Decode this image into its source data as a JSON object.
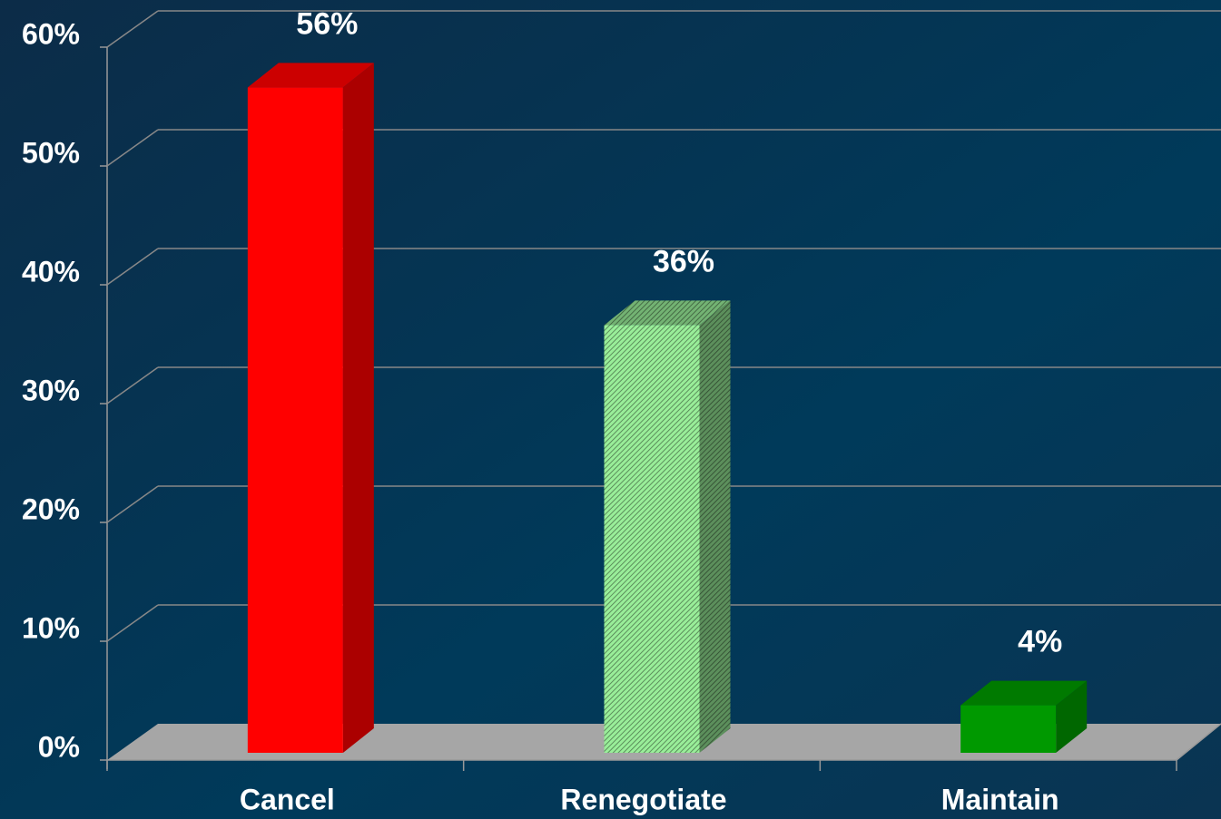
{
  "chart_data": {
    "type": "bar3d",
    "categories": [
      "Cancel",
      "Renegotiate",
      "Maintain"
    ],
    "values": [
      56,
      36,
      4
    ],
    "value_labels": [
      "56%",
      "36%",
      "4%"
    ],
    "colors": [
      "#ff0000",
      "#99ee99",
      "#009900"
    ],
    "hatch": [
      false,
      true,
      false
    ],
    "ylim": [
      0,
      60
    ],
    "yticks": [
      {
        "value": 0,
        "label": "0%"
      },
      {
        "value": 10,
        "label": "10%"
      },
      {
        "value": 20,
        "label": "20%"
      },
      {
        "value": 30,
        "label": "30%"
      },
      {
        "value": 40,
        "label": "40%"
      },
      {
        "value": 50,
        "label": "50%"
      },
      {
        "value": 60,
        "label": "60%"
      }
    ],
    "grid": true
  }
}
